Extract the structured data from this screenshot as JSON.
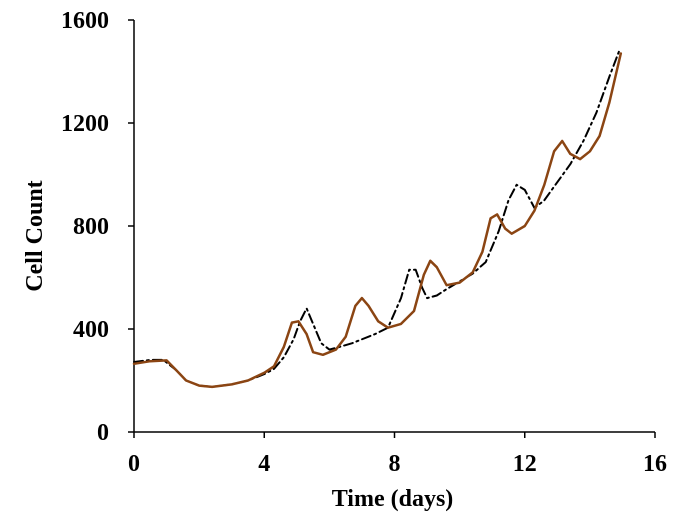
{
  "chart_data": {
    "type": "line",
    "title": "",
    "xlabel": "Time (days)",
    "ylabel": "Cell Count",
    "xlim": [
      0,
      16
    ],
    "ylim": [
      0,
      1600
    ],
    "x_ticks": [
      "0",
      "4",
      "8",
      "12",
      "16"
    ],
    "y_ticks": [
      "0",
      "400",
      "800",
      "1200",
      "1600"
    ],
    "x_tick_values": [
      0,
      4,
      8,
      12,
      16
    ],
    "y_tick_values": [
      0,
      400,
      800,
      1200,
      1600
    ],
    "grid": false,
    "legend": "none",
    "series": [
      {
        "style": "dash-dot",
        "color": "#000000",
        "points": [
          [
            0,
            272
          ],
          [
            0.5,
            280
          ],
          [
            0.9,
            280
          ],
          [
            1.3,
            240
          ],
          [
            1.6,
            200
          ],
          [
            2,
            180
          ],
          [
            2.4,
            175
          ],
          [
            3,
            185
          ],
          [
            3.5,
            200
          ],
          [
            4,
            225
          ],
          [
            4.3,
            245
          ],
          [
            4.6,
            290
          ],
          [
            4.9,
            360
          ],
          [
            5.1,
            430
          ],
          [
            5.3,
            480
          ],
          [
            5.5,
            420
          ],
          [
            5.75,
            345
          ],
          [
            6,
            320
          ],
          [
            6.3,
            330
          ],
          [
            6.7,
            345
          ],
          [
            7,
            360
          ],
          [
            7.4,
            380
          ],
          [
            7.8,
            405
          ],
          [
            8.2,
            520
          ],
          [
            8.45,
            630
          ],
          [
            8.65,
            630
          ],
          [
            8.85,
            560
          ],
          [
            9,
            520
          ],
          [
            9.3,
            530
          ],
          [
            9.6,
            555
          ],
          [
            10,
            585
          ],
          [
            10.4,
            615
          ],
          [
            10.8,
            660
          ],
          [
            11.2,
            780
          ],
          [
            11.5,
            900
          ],
          [
            11.75,
            960
          ],
          [
            12,
            940
          ],
          [
            12.3,
            870
          ],
          [
            12.6,
            900
          ],
          [
            13,
            970
          ],
          [
            13.4,
            1040
          ],
          [
            13.8,
            1130
          ],
          [
            14.2,
            1240
          ],
          [
            14.6,
            1380
          ],
          [
            14.9,
            1480
          ]
        ]
      },
      {
        "style": "solid",
        "color": "#8B4513",
        "points": [
          [
            0,
            265
          ],
          [
            0.5,
            275
          ],
          [
            1,
            278
          ],
          [
            1.3,
            240
          ],
          [
            1.6,
            200
          ],
          [
            2,
            180
          ],
          [
            2.4,
            175
          ],
          [
            3,
            185
          ],
          [
            3.5,
            200
          ],
          [
            4,
            230
          ],
          [
            4.3,
            255
          ],
          [
            4.6,
            330
          ],
          [
            4.85,
            425
          ],
          [
            5.05,
            430
          ],
          [
            5.3,
            380
          ],
          [
            5.5,
            310
          ],
          [
            5.8,
            300
          ],
          [
            6.2,
            320
          ],
          [
            6.5,
            370
          ],
          [
            6.8,
            490
          ],
          [
            7,
            520
          ],
          [
            7.2,
            490
          ],
          [
            7.5,
            430
          ],
          [
            7.8,
            405
          ],
          [
            8.2,
            420
          ],
          [
            8.6,
            470
          ],
          [
            8.9,
            610
          ],
          [
            9.1,
            665
          ],
          [
            9.3,
            640
          ],
          [
            9.6,
            570
          ],
          [
            10,
            580
          ],
          [
            10.4,
            620
          ],
          [
            10.7,
            700
          ],
          [
            10.95,
            830
          ],
          [
            11.15,
            845
          ],
          [
            11.4,
            790
          ],
          [
            11.6,
            770
          ],
          [
            12,
            800
          ],
          [
            12.3,
            860
          ],
          [
            12.6,
            960
          ],
          [
            12.9,
            1090
          ],
          [
            13.15,
            1130
          ],
          [
            13.4,
            1080
          ],
          [
            13.7,
            1060
          ],
          [
            14,
            1090
          ],
          [
            14.3,
            1150
          ],
          [
            14.6,
            1280
          ],
          [
            14.95,
            1470
          ]
        ]
      }
    ]
  }
}
